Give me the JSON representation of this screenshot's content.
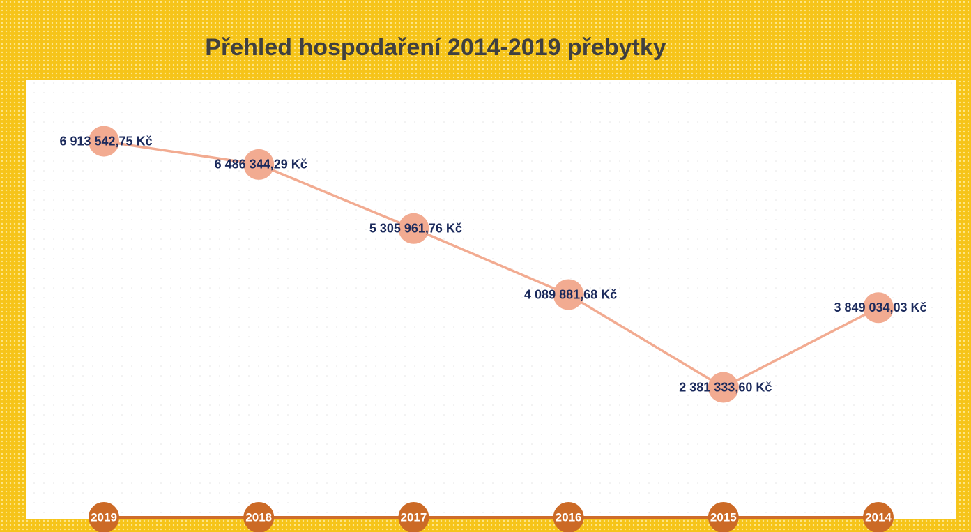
{
  "chart_data": {
    "type": "line",
    "title": "Přehled hospodaření 2014-2019 přebytky",
    "categories": [
      "2019",
      "2018",
      "2017",
      "2016",
      "2015",
      "2014"
    ],
    "values": [
      6913542.75,
      6486344.29,
      5305961.76,
      4089881.68,
      2381333.6,
      3849034.03
    ],
    "value_labels": [
      "6 913 542,75 Kč",
      "6 486 344,29 Kč",
      "5 305 961,76 Kč",
      "4 089 881,68 Kč",
      "2 381 333,60 Kč",
      "3 849 034,03 Kč"
    ],
    "color": "#f2ab91",
    "ylim": [
      0,
      8000000
    ]
  }
}
